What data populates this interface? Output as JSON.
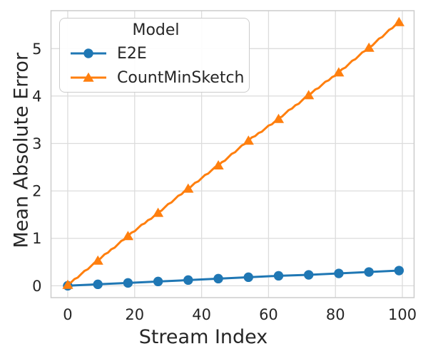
{
  "chart_data": {
    "type": "line",
    "title": "",
    "xlabel": "Stream Index",
    "ylabel": "Mean Absolute Error",
    "x": [
      0,
      9,
      18,
      27,
      36,
      45,
      54,
      63,
      72,
      81,
      90,
      99
    ],
    "series": [
      {
        "name": "E2E",
        "color": "#1f77b4",
        "marker": "circle",
        "values": [
          0.0,
          0.03,
          0.06,
          0.09,
          0.12,
          0.15,
          0.18,
          0.21,
          0.23,
          0.26,
          0.29,
          0.32
        ]
      },
      {
        "name": "CountMinSketch",
        "color": "#ff7f0e",
        "marker": "triangle",
        "values": [
          0.02,
          0.53,
          1.05,
          1.54,
          2.05,
          2.54,
          3.06,
          3.52,
          4.02,
          4.5,
          5.02,
          5.56
        ]
      }
    ],
    "xticks": [
      0,
      20,
      40,
      60,
      80,
      100
    ],
    "yticks": [
      0,
      1,
      2,
      3,
      4,
      5
    ],
    "xlim": [
      -5,
      103.5
    ],
    "ylim": [
      -0.25,
      5.8
    ],
    "grid": true,
    "legend": {
      "title": "Model",
      "position": "upper left"
    },
    "colors": {
      "grid": "#dcdcdc",
      "spine": "#cccccc",
      "text": "#262626",
      "background": "#ffffff"
    }
  }
}
